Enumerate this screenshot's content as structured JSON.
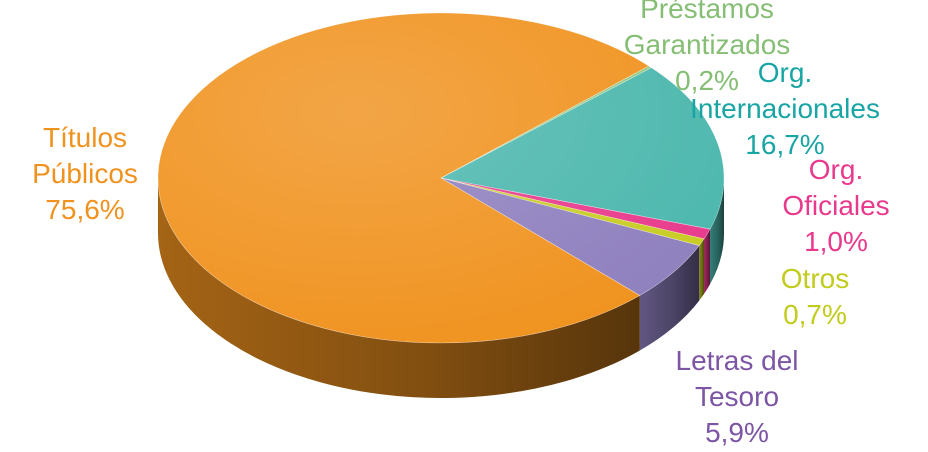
{
  "chart_data": {
    "type": "pie",
    "style": "3d",
    "slices": [
      {
        "label_lines": [
          "Org.",
          "Internacionales"
        ],
        "percent_label": "16,7%",
        "value": 16.7,
        "color": "#4BB7AD",
        "label_color": "#1AA5A5"
      },
      {
        "label_lines": [
          "Org.",
          "Oficiales"
        ],
        "percent_label": "1,0%",
        "value": 1.0,
        "color": "#E8398C",
        "label_color": "#E8398C"
      },
      {
        "label_lines": [
          "Otros"
        ],
        "percent_label": "0,7%",
        "value": 0.7,
        "color": "#C8CC22",
        "label_color": "#C2CC1C"
      },
      {
        "label_lines": [
          "Letras del",
          "Tesoro"
        ],
        "percent_label": "5,9%",
        "value": 5.9,
        "color": "#8E7FBE",
        "label_color": "#7C55A4"
      },
      {
        "label_lines": [
          "Títulos",
          "Públicos"
        ],
        "percent_label": "75,6%",
        "value": 75.6,
        "color": "#F0921E",
        "label_color": "#F0921E"
      },
      {
        "label_lines": [
          "Préstamos",
          "Garantizados"
        ],
        "percent_label": "0,2%",
        "value": 0.2,
        "color": "#8FC57F",
        "label_color": "#85BE74"
      }
    ],
    "legend": "none"
  }
}
